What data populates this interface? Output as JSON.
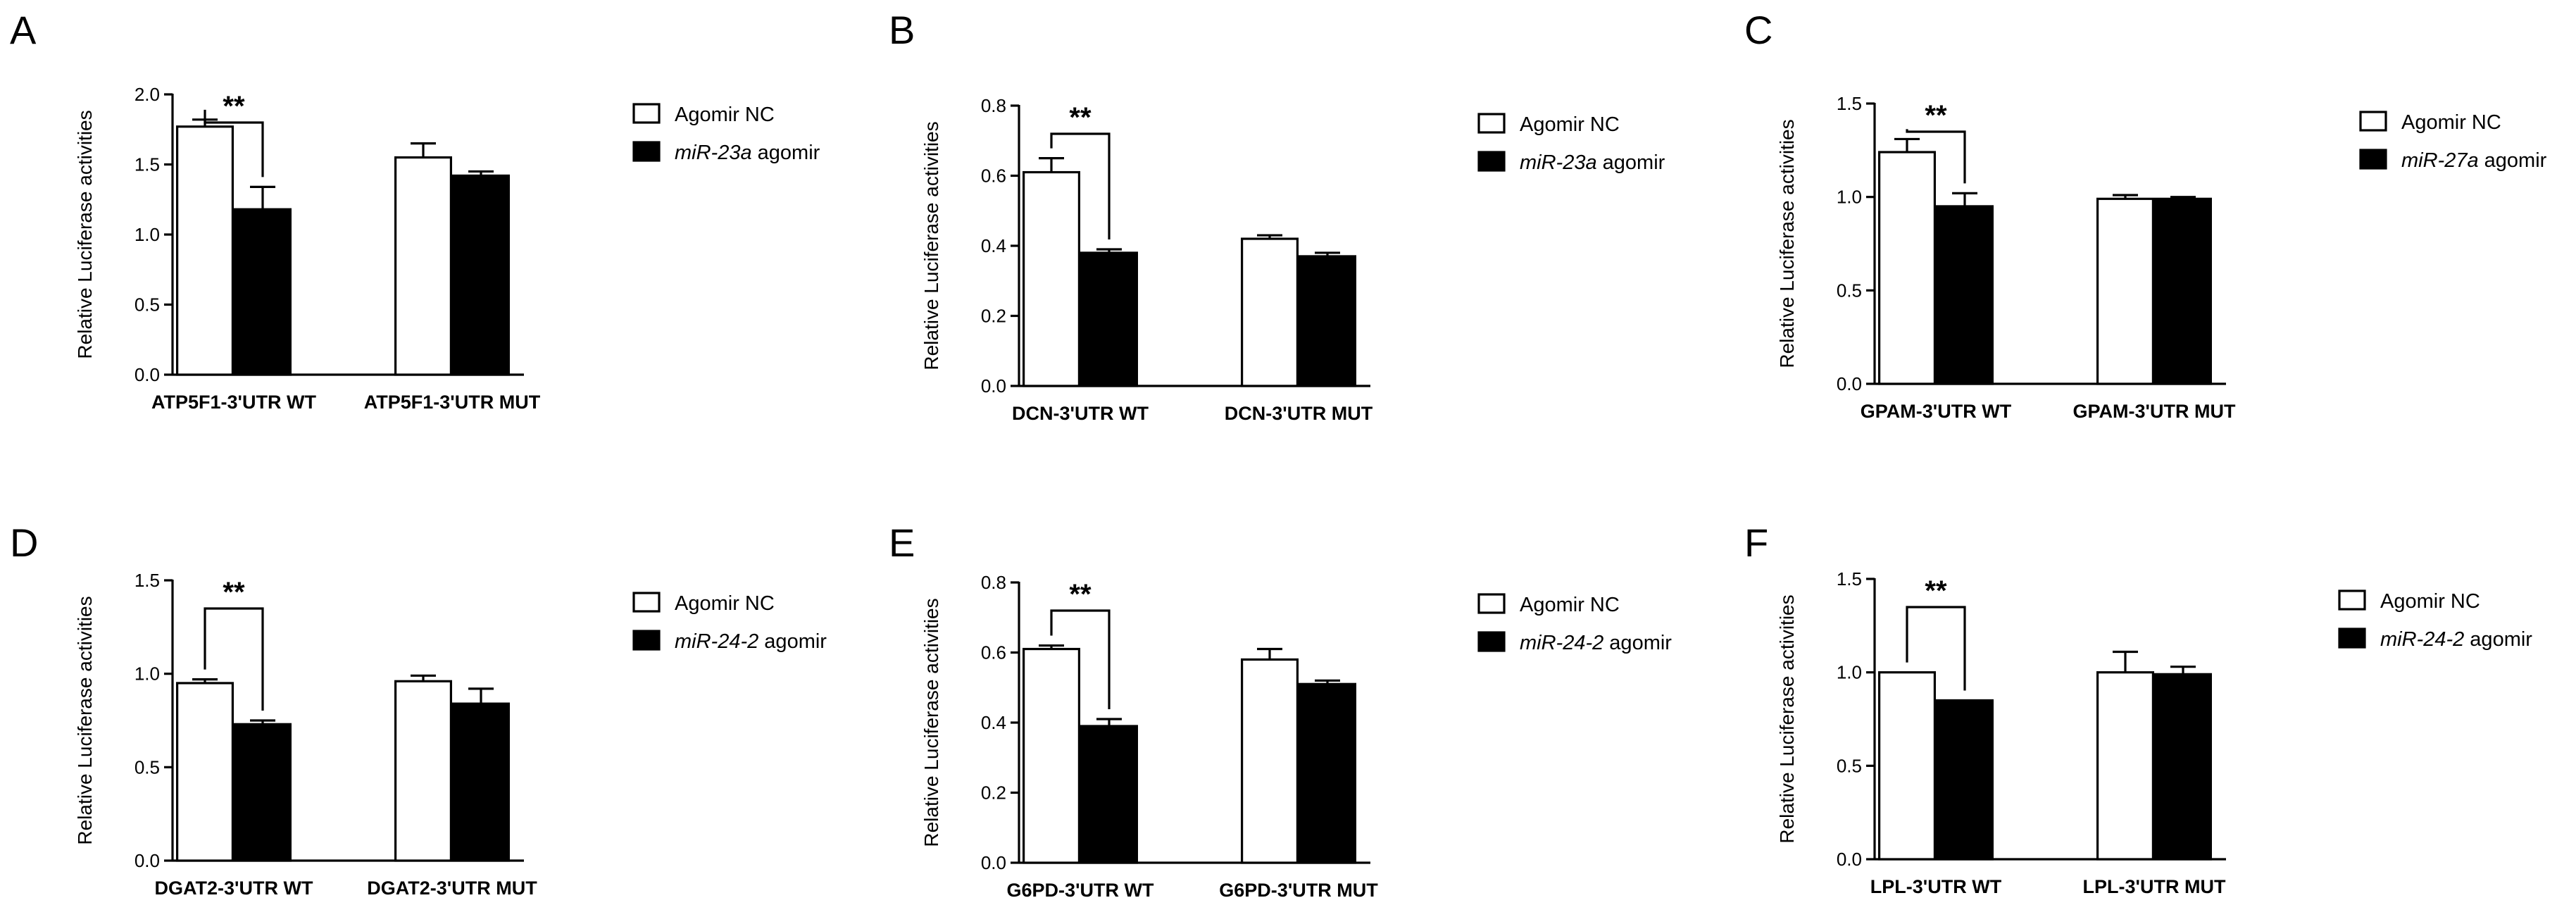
{
  "figure": {
    "panels": [
      {
        "letter": "A",
        "ylabel": "Relative Luciferase activities",
        "legend": [
          {
            "fill": "white",
            "italic": "",
            "text": "Agomir NC"
          },
          {
            "fill": "black",
            "italic": "miR-23a",
            "text": " agomir"
          }
        ],
        "significance": "**"
      },
      {
        "letter": "B",
        "ylabel": "Relative Luciferase activities",
        "legend": [
          {
            "fill": "white",
            "italic": "",
            "text": "Agomir NC"
          },
          {
            "fill": "black",
            "italic": "miR-23a",
            "text": " agomir"
          }
        ],
        "significance": "**"
      },
      {
        "letter": "C",
        "ylabel": "Relative Luciferase activities",
        "legend": [
          {
            "fill": "white",
            "italic": "",
            "text": "Agomir NC"
          },
          {
            "fill": "black",
            "italic": "miR-27a",
            "text": " agomir"
          }
        ],
        "significance": "**"
      },
      {
        "letter": "D",
        "ylabel": "Relative Luciferase activities",
        "legend": [
          {
            "fill": "white",
            "italic": "",
            "text": "Agomir NC"
          },
          {
            "fill": "black",
            "italic": "miR-24-2",
            "text": " agomir"
          }
        ],
        "significance": "**"
      },
      {
        "letter": "E",
        "ylabel": "Relative Luciferase activities",
        "legend": [
          {
            "fill": "white",
            "italic": "",
            "text": "Agomir NC"
          },
          {
            "fill": "black",
            "italic": "miR-24-2",
            "text": " agomir"
          }
        ],
        "significance": "**"
      },
      {
        "letter": "F",
        "ylabel": "Relative Luciferase activities",
        "legend": [
          {
            "fill": "white",
            "italic": "",
            "text": "Agomir NC"
          },
          {
            "fill": "black",
            "italic": "miR-24-2",
            "text": " agomir"
          }
        ],
        "significance": "**"
      }
    ]
  },
  "chart_data": [
    {
      "type": "bar",
      "panel": "A",
      "categories": [
        "ATP5F1-3'UTR WT",
        "ATP5F1-3'UTR MUT"
      ],
      "series": [
        {
          "name": "Agomir NC",
          "values": [
            1.77,
            1.55
          ],
          "errors": [
            0.05,
            0.1
          ]
        },
        {
          "name": "miR-23a agomir",
          "values": [
            1.18,
            1.42
          ],
          "errors": [
            0.16,
            0.03
          ]
        }
      ],
      "ylabel": "Relative Luciferase activities",
      "ylim": [
        0,
        2.0
      ],
      "yticks": [
        0.0,
        0.5,
        1.0,
        1.5,
        2.0
      ],
      "ytick_labels": [
        "0.0",
        "0.5",
        "1.0",
        "1.5",
        "2.0"
      ],
      "significance": {
        "categories": [
          0
        ],
        "label": "**"
      }
    },
    {
      "type": "bar",
      "panel": "B",
      "categories": [
        "DCN-3'UTR WT",
        "DCN-3'UTR MUT"
      ],
      "series": [
        {
          "name": "Agomir NC",
          "values": [
            0.61,
            0.42
          ],
          "errors": [
            0.04,
            0.01
          ]
        },
        {
          "name": "miR-23a agomir",
          "values": [
            0.38,
            0.37
          ],
          "errors": [
            0.01,
            0.01
          ]
        }
      ],
      "ylabel": "Relative Luciferase activities",
      "ylim": [
        0,
        0.8
      ],
      "yticks": [
        0.0,
        0.2,
        0.4,
        0.6,
        0.8
      ],
      "ytick_labels": [
        "0.0",
        "0.2",
        "0.4",
        "0.6",
        "0.8"
      ],
      "significance": {
        "categories": [
          0
        ],
        "label": "**"
      }
    },
    {
      "type": "bar",
      "panel": "C",
      "categories": [
        "GPAM-3'UTR WT",
        "GPAM-3'UTR MUT"
      ],
      "series": [
        {
          "name": "Agomir NC",
          "values": [
            1.24,
            0.99
          ],
          "errors": [
            0.07,
            0.02
          ]
        },
        {
          "name": "miR-27a agomir",
          "values": [
            0.95,
            0.99
          ],
          "errors": [
            0.07,
            0.01
          ]
        }
      ],
      "ylabel": "Relative Luciferase activities",
      "ylim": [
        0,
        1.5
      ],
      "yticks": [
        0.0,
        0.5,
        1.0,
        1.5
      ],
      "ytick_labels": [
        "0.0",
        "0.5",
        "1.0",
        "1.5"
      ],
      "significance": {
        "categories": [
          0
        ],
        "label": "**"
      }
    },
    {
      "type": "bar",
      "panel": "D",
      "categories": [
        "DGAT2-3'UTR WT",
        "DGAT2-3'UTR MUT"
      ],
      "series": [
        {
          "name": "Agomir NC",
          "values": [
            0.95,
            0.96
          ],
          "errors": [
            0.02,
            0.03
          ]
        },
        {
          "name": "miR-24-2 agomir",
          "values": [
            0.73,
            0.84
          ],
          "errors": [
            0.02,
            0.08
          ]
        }
      ],
      "ylabel": "Relative Luciferase activities",
      "ylim": [
        0,
        1.5
      ],
      "yticks": [
        0.0,
        0.5,
        1.0,
        1.5
      ],
      "ytick_labels": [
        "0.0",
        "0.5",
        "1.0",
        "1.5"
      ],
      "significance": {
        "categories": [
          0
        ],
        "label": "**"
      }
    },
    {
      "type": "bar",
      "panel": "E",
      "categories": [
        "G6PD-3'UTR WT",
        "G6PD-3'UTR MUT"
      ],
      "series": [
        {
          "name": "Agomir NC",
          "values": [
            0.61,
            0.58
          ],
          "errors": [
            0.01,
            0.03
          ]
        },
        {
          "name": "miR-24-2 agomir",
          "values": [
            0.39,
            0.51
          ],
          "errors": [
            0.02,
            0.01
          ]
        }
      ],
      "ylabel": "Relative Luciferase activities",
      "ylim": [
        0,
        0.8
      ],
      "yticks": [
        0.0,
        0.2,
        0.4,
        0.6,
        0.8
      ],
      "ytick_labels": [
        "0.0",
        "0.2",
        "0.4",
        "0.6",
        "0.8"
      ],
      "significance": {
        "categories": [
          0
        ],
        "label": "**"
      }
    },
    {
      "type": "bar",
      "panel": "F",
      "categories": [
        "LPL-3'UTR WT",
        "LPL-3'UTR MUT"
      ],
      "series": [
        {
          "name": "Agomir NC",
          "values": [
            1.0,
            1.0
          ],
          "errors": [
            0.0,
            0.11
          ]
        },
        {
          "name": "miR-24-2 agomir",
          "values": [
            0.85,
            0.99
          ],
          "errors": [
            0.0,
            0.04
          ]
        }
      ],
      "ylabel": "Relative Luciferase activities",
      "ylim": [
        0,
        1.5
      ],
      "yticks": [
        0.0,
        0.5,
        1.0,
        1.5
      ],
      "ytick_labels": [
        "0.0",
        "0.5",
        "1.0",
        "1.5"
      ],
      "significance": {
        "categories": [
          0
        ],
        "label": "**"
      }
    }
  ]
}
